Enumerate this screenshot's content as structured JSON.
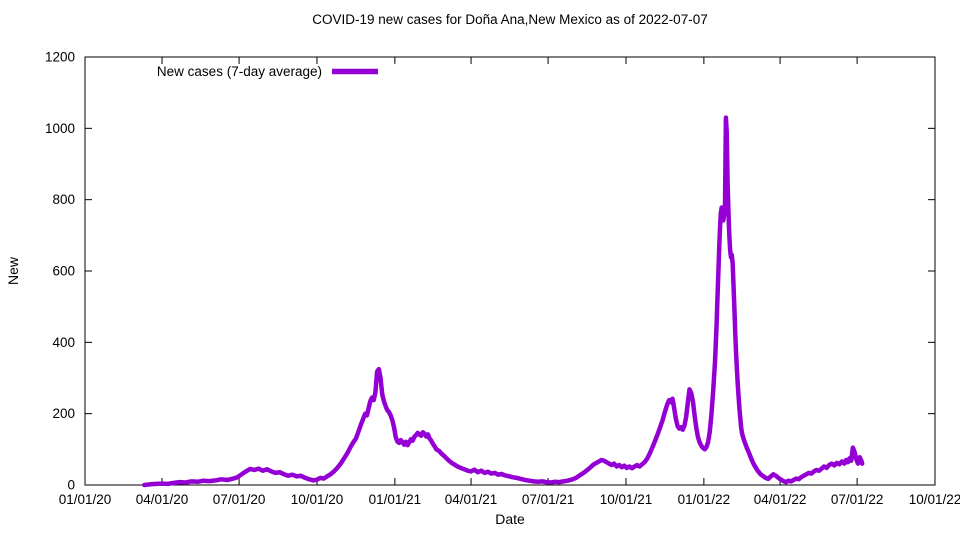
{
  "chart_data": {
    "type": "line",
    "title": "COVID-19 new cases for Doña Ana,New Mexico as of 2022-07-07",
    "xlabel": "Date",
    "ylabel": "New",
    "ylim": [
      0,
      1200
    ],
    "y_ticks": [
      0,
      200,
      400,
      600,
      800,
      1000,
      1200
    ],
    "x_range_days": [
      0,
      1004
    ],
    "x_ticks": [
      {
        "label": "01/01/20",
        "day": 0
      },
      {
        "label": "04/01/20",
        "day": 91
      },
      {
        "label": "07/01/20",
        "day": 182
      },
      {
        "label": "10/01/20",
        "day": 274
      },
      {
        "label": "01/01/21",
        "day": 366
      },
      {
        "label": "04/01/21",
        "day": 456
      },
      {
        "label": "07/01/21",
        "day": 547
      },
      {
        "label": "10/01/21",
        "day": 639
      },
      {
        "label": "01/01/22",
        "day": 731
      },
      {
        "label": "04/01/22",
        "day": 821
      },
      {
        "label": "07/01/22",
        "day": 912
      },
      {
        "label": "10/01/22",
        "day": 1004
      }
    ],
    "grid": false,
    "legend_position": "top-left-inside",
    "legend": [
      {
        "name": "New cases (7-day average)",
        "color": "#9400d3"
      }
    ],
    "series": [
      {
        "name": "New cases (7-day average)",
        "color": "#9400d3",
        "points": [
          [
            70,
            0
          ],
          [
            77,
            2
          ],
          [
            84,
            3
          ],
          [
            91,
            4
          ],
          [
            98,
            3
          ],
          [
            105,
            6
          ],
          [
            112,
            8
          ],
          [
            119,
            7
          ],
          [
            126,
            10
          ],
          [
            133,
            9
          ],
          [
            140,
            12
          ],
          [
            147,
            11
          ],
          [
            154,
            13
          ],
          [
            161,
            16
          ],
          [
            168,
            14
          ],
          [
            175,
            18
          ],
          [
            180,
            22
          ],
          [
            185,
            30
          ],
          [
            190,
            38
          ],
          [
            195,
            45
          ],
          [
            200,
            42
          ],
          [
            205,
            46
          ],
          [
            210,
            40
          ],
          [
            215,
            44
          ],
          [
            220,
            38
          ],
          [
            225,
            34
          ],
          [
            230,
            36
          ],
          [
            235,
            30
          ],
          [
            240,
            26
          ],
          [
            245,
            29
          ],
          [
            250,
            24
          ],
          [
            255,
            26
          ],
          [
            260,
            20
          ],
          [
            265,
            16
          ],
          [
            270,
            13
          ],
          [
            274,
            15
          ],
          [
            278,
            20
          ],
          [
            282,
            18
          ],
          [
            286,
            24
          ],
          [
            290,
            30
          ],
          [
            294,
            38
          ],
          [
            298,
            48
          ],
          [
            302,
            60
          ],
          [
            306,
            75
          ],
          [
            310,
            90
          ],
          [
            314,
            108
          ],
          [
            317,
            120
          ],
          [
            320,
            130
          ],
          [
            323,
            150
          ],
          [
            326,
            170
          ],
          [
            329,
            188
          ],
          [
            331,
            200
          ],
          [
            333,
            195
          ],
          [
            335,
            215
          ],
          [
            337,
            235
          ],
          [
            339,
            245
          ],
          [
            341,
            238
          ],
          [
            343,
            260
          ],
          [
            345,
            318
          ],
          [
            347,
            325
          ],
          [
            349,
            300
          ],
          [
            351,
            255
          ],
          [
            353,
            235
          ],
          [
            355,
            222
          ],
          [
            357,
            210
          ],
          [
            359,
            205
          ],
          [
            361,
            195
          ],
          [
            363,
            182
          ],
          [
            365,
            162
          ],
          [
            367,
            135
          ],
          [
            369,
            122
          ],
          [
            371,
            118
          ],
          [
            373,
            126
          ],
          [
            375,
            120
          ],
          [
            377,
            113
          ],
          [
            379,
            121
          ],
          [
            381,
            112
          ],
          [
            383,
            120
          ],
          [
            385,
            128
          ],
          [
            387,
            124
          ],
          [
            389,
            135
          ],
          [
            391,
            140
          ],
          [
            393,
            146
          ],
          [
            395,
            142
          ],
          [
            397,
            138
          ],
          [
            399,
            148
          ],
          [
            401,
            144
          ],
          [
            403,
            136
          ],
          [
            405,
            142
          ],
          [
            407,
            130
          ],
          [
            409,
            124
          ],
          [
            411,
            115
          ],
          [
            413,
            108
          ],
          [
            415,
            100
          ],
          [
            418,
            96
          ],
          [
            421,
            88
          ],
          [
            424,
            82
          ],
          [
            427,
            75
          ],
          [
            430,
            68
          ],
          [
            433,
            62
          ],
          [
            436,
            58
          ],
          [
            440,
            52
          ],
          [
            444,
            48
          ],
          [
            448,
            44
          ],
          [
            452,
            40
          ],
          [
            456,
            38
          ],
          [
            460,
            43
          ],
          [
            464,
            36
          ],
          [
            468,
            40
          ],
          [
            472,
            34
          ],
          [
            476,
            37
          ],
          [
            480,
            32
          ],
          [
            484,
            34
          ],
          [
            488,
            29
          ],
          [
            492,
            31
          ],
          [
            496,
            27
          ],
          [
            500,
            25
          ],
          [
            505,
            22
          ],
          [
            510,
            20
          ],
          [
            515,
            17
          ],
          [
            520,
            14
          ],
          [
            525,
            12
          ],
          [
            530,
            10
          ],
          [
            535,
            9
          ],
          [
            540,
            10
          ],
          [
            545,
            8
          ],
          [
            550,
            7
          ],
          [
            555,
            9
          ],
          [
            560,
            8
          ],
          [
            565,
            10
          ],
          [
            570,
            12
          ],
          [
            575,
            15
          ],
          [
            580,
            20
          ],
          [
            585,
            28
          ],
          [
            590,
            36
          ],
          [
            595,
            45
          ],
          [
            598,
            52
          ],
          [
            601,
            58
          ],
          [
            604,
            62
          ],
          [
            607,
            66
          ],
          [
            610,
            70
          ],
          [
            613,
            68
          ],
          [
            616,
            64
          ],
          [
            619,
            60
          ],
          [
            622,
            56
          ],
          [
            625,
            60
          ],
          [
            628,
            52
          ],
          [
            631,
            56
          ],
          [
            634,
            50
          ],
          [
            637,
            54
          ],
          [
            640,
            48
          ],
          [
            643,
            52
          ],
          [
            646,
            47
          ],
          [
            649,
            52
          ],
          [
            652,
            56
          ],
          [
            655,
            52
          ],
          [
            658,
            58
          ],
          [
            661,
            64
          ],
          [
            664,
            74
          ],
          [
            667,
            88
          ],
          [
            670,
            104
          ],
          [
            673,
            122
          ],
          [
            676,
            140
          ],
          [
            679,
            160
          ],
          [
            682,
            180
          ],
          [
            685,
            205
          ],
          [
            688,
            228
          ],
          [
            690,
            238
          ],
          [
            692,
            232
          ],
          [
            694,
            242
          ],
          [
            696,
            215
          ],
          [
            698,
            185
          ],
          [
            700,
            165
          ],
          [
            702,
            158
          ],
          [
            704,
            162
          ],
          [
            706,
            155
          ],
          [
            708,
            166
          ],
          [
            710,
            190
          ],
          [
            712,
            230
          ],
          [
            714,
            268
          ],
          [
            716,
            258
          ],
          [
            718,
            235
          ],
          [
            720,
            195
          ],
          [
            722,
            160
          ],
          [
            724,
            135
          ],
          [
            726,
            120
          ],
          [
            728,
            110
          ],
          [
            730,
            104
          ],
          [
            732,
            100
          ],
          [
            734,
            106
          ],
          [
            736,
            120
          ],
          [
            738,
            150
          ],
          [
            740,
            200
          ],
          [
            742,
            265
          ],
          [
            744,
            340
          ],
          [
            745,
            390
          ],
          [
            746,
            450
          ],
          [
            747,
            520
          ],
          [
            748,
            590
          ],
          [
            749,
            655
          ],
          [
            750,
            720
          ],
          [
            751,
            762
          ],
          [
            752,
            778
          ],
          [
            753,
            760
          ],
          [
            754,
            742
          ],
          [
            755,
            758
          ],
          [
            756,
            780
          ],
          [
            757,
            1030
          ],
          [
            758,
            990
          ],
          [
            759,
            850
          ],
          [
            760,
            770
          ],
          [
            761,
            700
          ],
          [
            762,
            660
          ],
          [
            763,
            638
          ],
          [
            764,
            645
          ],
          [
            765,
            620
          ],
          [
            766,
            560
          ],
          [
            767,
            495
          ],
          [
            768,
            430
          ],
          [
            769,
            375
          ],
          [
            770,
            325
          ],
          [
            771,
            285
          ],
          [
            772,
            248
          ],
          [
            773,
            215
          ],
          [
            774,
            188
          ],
          [
            775,
            162
          ],
          [
            776,
            145
          ],
          [
            778,
            128
          ],
          [
            780,
            115
          ],
          [
            782,
            102
          ],
          [
            784,
            92
          ],
          [
            786,
            80
          ],
          [
            788,
            68
          ],
          [
            790,
            58
          ],
          [
            792,
            50
          ],
          [
            794,
            42
          ],
          [
            796,
            36
          ],
          [
            798,
            30
          ],
          [
            801,
            25
          ],
          [
            804,
            20
          ],
          [
            807,
            17
          ],
          [
            810,
            24
          ],
          [
            813,
            30
          ],
          [
            816,
            26
          ],
          [
            819,
            20
          ],
          [
            822,
            15
          ],
          [
            825,
            11
          ],
          [
            828,
            8
          ],
          [
            831,
            12
          ],
          [
            834,
            10
          ],
          [
            837,
            14
          ],
          [
            840,
            18
          ],
          [
            843,
            16
          ],
          [
            846,
            22
          ],
          [
            849,
            26
          ],
          [
            852,
            30
          ],
          [
            855,
            34
          ],
          [
            858,
            32
          ],
          [
            861,
            38
          ],
          [
            864,
            42
          ],
          [
            867,
            40
          ],
          [
            870,
            46
          ],
          [
            873,
            52
          ],
          [
            876,
            48
          ],
          [
            879,
            56
          ],
          [
            882,
            60
          ],
          [
            885,
            55
          ],
          [
            888,
            62
          ],
          [
            891,
            58
          ],
          [
            894,
            66
          ],
          [
            897,
            60
          ],
          [
            899,
            70
          ],
          [
            901,
            64
          ],
          [
            903,
            75
          ],
          [
            905,
            68
          ],
          [
            907,
            105
          ],
          [
            909,
            92
          ],
          [
            911,
            72
          ],
          [
            913,
            60
          ],
          [
            915,
            78
          ],
          [
            917,
            68
          ],
          [
            918,
            60
          ]
        ]
      }
    ]
  }
}
